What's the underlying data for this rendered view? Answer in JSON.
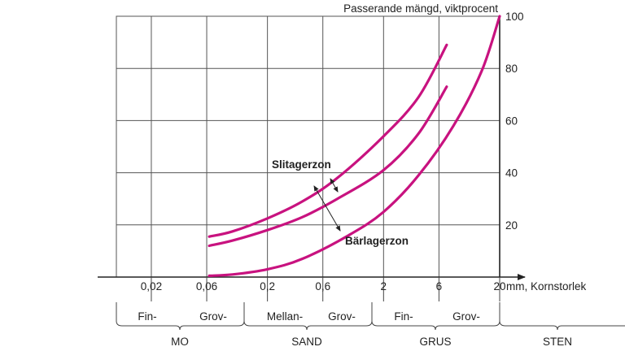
{
  "chart_data": {
    "type": "line",
    "ylabel": "Passerande mängd, viktprocent",
    "xlabel": "mm, Kornstorlek",
    "x_scale": "log",
    "x_ticks": [
      "0,02",
      "0,06",
      "0,2",
      "0,6",
      "2",
      "6",
      "20"
    ],
    "x_tick_values": [
      0.02,
      0.06,
      0.2,
      0.6,
      2,
      6,
      20
    ],
    "y_ticks": [
      "20",
      "40",
      "60",
      "80",
      "100"
    ],
    "y_tick_values": [
      20,
      40,
      60,
      80,
      100
    ],
    "xlim": [
      0.01,
      20
    ],
    "ylim": [
      0,
      100
    ],
    "grid": true,
    "series_color": "#c8127f",
    "series": [
      {
        "x": [
          0.063,
          0.1,
          0.2,
          0.4,
          0.8,
          2,
          4,
          7
        ],
        "y": [
          15.5,
          17.5,
          22.5,
          29,
          38,
          54,
          69,
          89
        ]
      },
      {
        "x": [
          0.063,
          0.1,
          0.2,
          0.4,
          0.8,
          2,
          4,
          7
        ],
        "y": [
          12,
          14,
          18,
          23,
          30,
          41,
          55,
          73
        ]
      },
      {
        "x": [
          0.063,
          0.1,
          0.2,
          0.4,
          1,
          2,
          4,
          8,
          14,
          20
        ],
        "y": [
          0.5,
          1,
          3,
          7,
          16,
          25,
          39,
          58,
          79,
          100
        ]
      }
    ],
    "annotations": [
      {
        "text": "Slitagerzon"
      },
      {
        "text": "Bärlagerzon"
      }
    ],
    "fraction_subdivisions": [
      "Fin-",
      "Grov-",
      "Mellan-",
      "Grov-",
      "Fin-",
      "Grov-"
    ],
    "fractions": [
      "MO",
      "SAND",
      "GRUS",
      "STEN"
    ]
  }
}
